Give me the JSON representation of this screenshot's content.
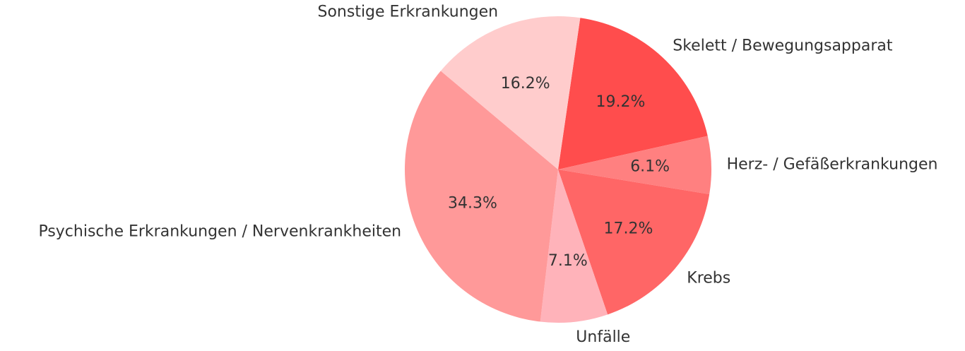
{
  "chart_data": {
    "type": "pie",
    "title": "",
    "start_angle_deg": 81.7,
    "direction": "clockwise",
    "slices": [
      {
        "label": "Skelett / Bewegungsapparat",
        "value": 19.2,
        "pct_label": "19.2%",
        "color": "#ff4d4d"
      },
      {
        "label": "Herz- / Gefäßerkrankungen",
        "value": 6.1,
        "pct_label": "6.1%",
        "color": "#ff8080"
      },
      {
        "label": "Krebs",
        "value": 17.2,
        "pct_label": "17.2%",
        "color": "#ff6666"
      },
      {
        "label": "Unfälle",
        "value": 7.1,
        "pct_label": "7.1%",
        "color": "#ffb3ba"
      },
      {
        "label": "Psychische Erkrankungen / Nervenkrankheiten",
        "value": 34.3,
        "pct_label": "34.3%",
        "color": "#ff9999"
      },
      {
        "label": "Sonstige Erkrankungen",
        "value": 16.2,
        "pct_label": "16.2%",
        "color": "#ffcccc"
      }
    ]
  }
}
